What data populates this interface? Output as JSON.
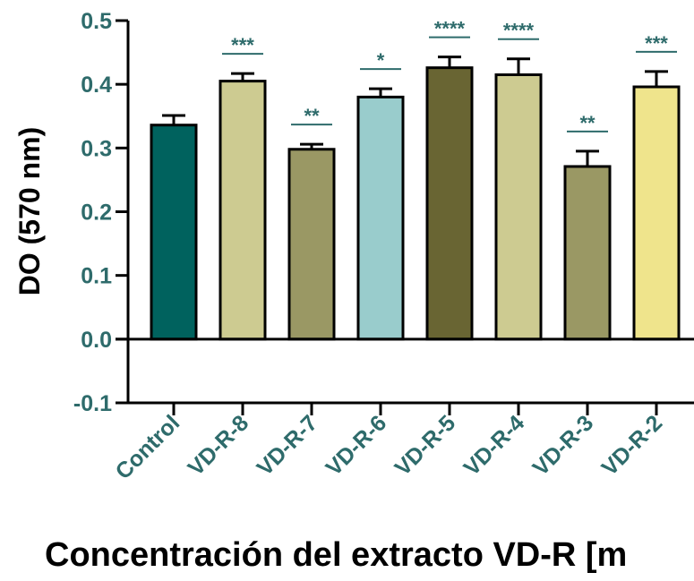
{
  "chart_data": {
    "type": "bar",
    "title": "",
    "xlabel": "Concentración del extracto VD-R [m",
    "ylabel": "DO (570 nm)",
    "ylim": [
      -0.1,
      0.5
    ],
    "yticks": [
      "-0.1",
      "0.0",
      "0.1",
      "0.2",
      "0.3",
      "0.4",
      "0.5"
    ],
    "ytick_values": [
      -0.1,
      0.0,
      0.1,
      0.2,
      0.3,
      0.4,
      0.5
    ],
    "categories": [
      "Control",
      "VD-R-8",
      "VD-R-7",
      "VD-R-6",
      "VD-R-5",
      "VD-R-4",
      "VD-R-3",
      "VD-R-2"
    ],
    "values": [
      0.336,
      0.405,
      0.298,
      0.38,
      0.426,
      0.415,
      0.271,
      0.396
    ],
    "errors": [
      0.015,
      0.012,
      0.008,
      0.013,
      0.017,
      0.025,
      0.024,
      0.024
    ],
    "significance": [
      "",
      "***",
      "**",
      "*",
      "****",
      "****",
      "**",
      "***"
    ],
    "colors": [
      "#00625e",
      "#cdcb91",
      "#9a9864",
      "#99cccc",
      "#696533",
      "#cdcb91",
      "#9a9864",
      "#efe48c"
    ],
    "axis_color": "#000000",
    "tick_label_color": "#2e6b6b",
    "grid": false
  }
}
